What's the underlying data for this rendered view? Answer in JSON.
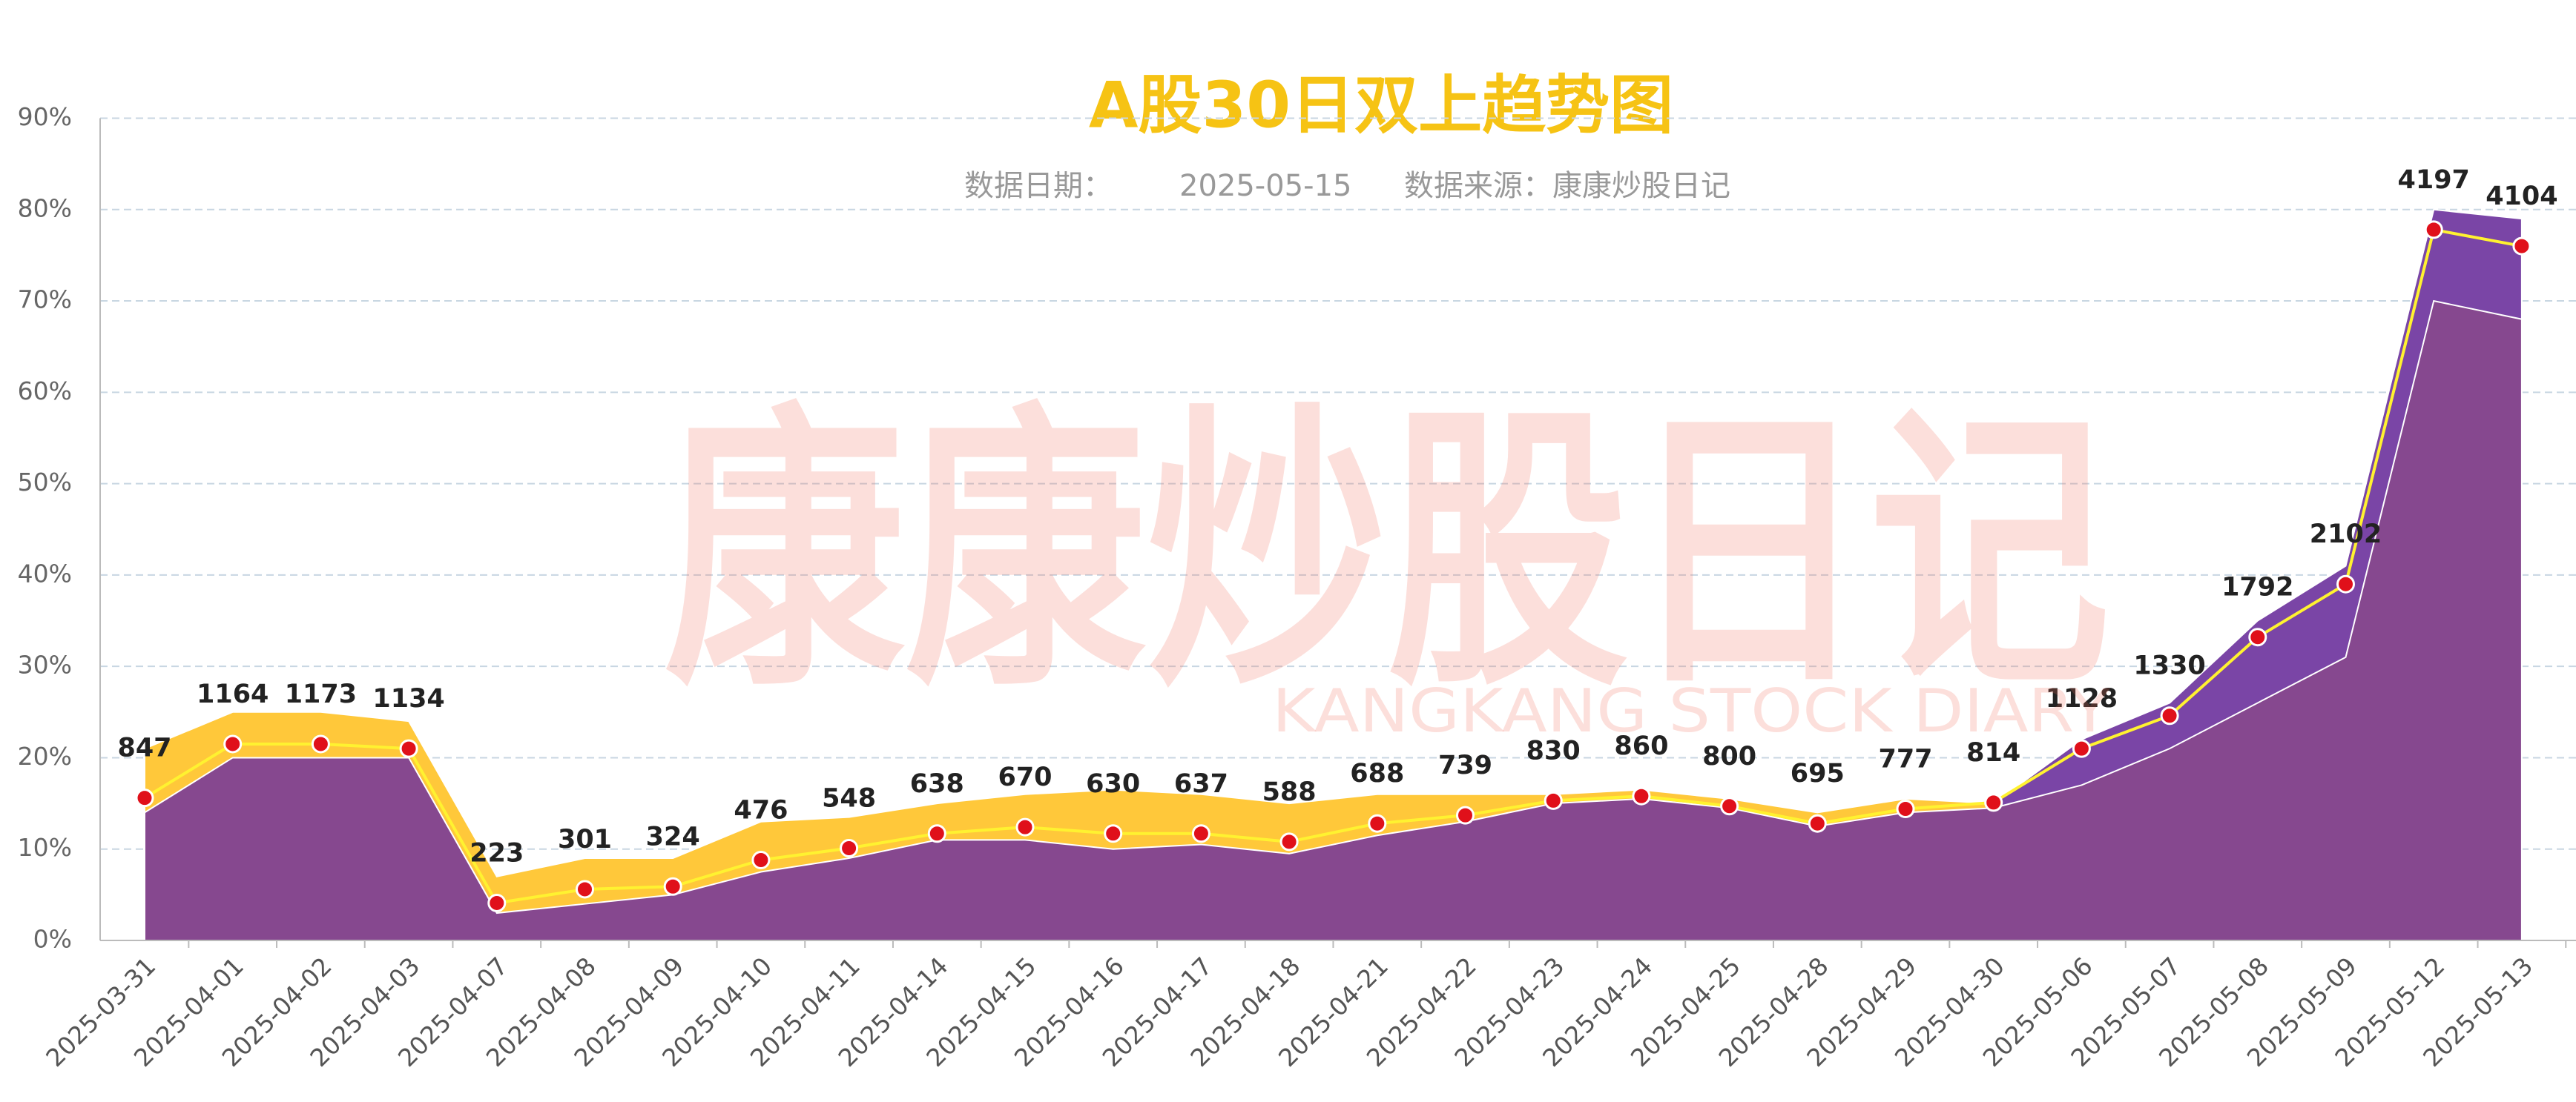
{
  "chart_data": {
    "type": "area-line",
    "title": "A股30日双上趋势图",
    "subtitle_date_label": "数据日期：",
    "subtitle_date": "2025-05-15",
    "subtitle_source": "数据来源：康康炒股日记",
    "watermark": "康康炒股日记",
    "watermark_en": "KANGKANG STOCK DIARY",
    "categories": [
      "2025-03-31",
      "2025-04-01",
      "2025-04-02",
      "2025-04-03",
      "2025-04-07",
      "2025-04-08",
      "2025-04-09",
      "2025-04-10",
      "2025-04-11",
      "2025-04-14",
      "2025-04-15",
      "2025-04-16",
      "2025-04-17",
      "2025-04-18",
      "2025-04-21",
      "2025-04-22",
      "2025-04-23",
      "2025-04-24",
      "2025-04-25",
      "2025-04-28",
      "2025-04-29",
      "2025-04-30",
      "2025-05-06",
      "2025-05-07",
      "2025-05-08",
      "2025-05-09",
      "2025-05-12",
      "2025-05-13"
    ],
    "series": [
      {
        "kind": "area",
        "color": "#ffc83a",
        "values": [
          21,
          25,
          25,
          24,
          7,
          9,
          9,
          13,
          13.5,
          15,
          16,
          16.5,
          16,
          15,
          16,
          16,
          16,
          16.5,
          15.5,
          14,
          15.5,
          15,
          null,
          null,
          null,
          null,
          null,
          null
        ]
      },
      {
        "kind": "area",
        "color": "#7a45a6",
        "values": [
          null,
          null,
          null,
          null,
          null,
          null,
          null,
          null,
          null,
          null,
          null,
          null,
          null,
          null,
          null,
          null,
          null,
          null,
          null,
          null,
          null,
          15,
          22,
          26,
          35,
          41,
          80,
          79
        ]
      },
      {
        "kind": "area",
        "color": "#86488f",
        "values": [
          14,
          20,
          20,
          20,
          3,
          4,
          5,
          7.5,
          9,
          11,
          11,
          10,
          10.5,
          9.5,
          11.5,
          13,
          15,
          15.5,
          14.5,
          12.5,
          14,
          14.5,
          17,
          21,
          26,
          31,
          70,
          68
        ]
      },
      {
        "kind": "line",
        "color": "#fff230",
        "dot_color": "#e0101a",
        "values": [
          15.6,
          21.5,
          21.5,
          21.0,
          4.1,
          5.6,
          5.9,
          8.8,
          10.1,
          11.7,
          12.4,
          11.7,
          11.7,
          10.8,
          12.8,
          13.7,
          15.3,
          15.8,
          14.7,
          12.8,
          14.4,
          15.1,
          21.0,
          24.6,
          33.2,
          39.0,
          77.8,
          76.0
        ]
      }
    ],
    "counts": [
      847,
      1164,
      1173,
      1134,
      223,
      301,
      324,
      476,
      548,
      638,
      670,
      630,
      637,
      588,
      688,
      739,
      830,
      860,
      800,
      695,
      777,
      814,
      1128,
      1330,
      1792,
      2102,
      4197,
      4104
    ],
    "ylim": [
      0,
      90
    ],
    "yticks": [
      {
        "value": 0,
        "label": "0%"
      },
      {
        "value": 10,
        "label": "10%"
      },
      {
        "value": 20,
        "label": "20%"
      },
      {
        "value": 30,
        "label": "30%"
      },
      {
        "value": 40,
        "label": "40%"
      },
      {
        "value": 50,
        "label": "50%"
      },
      {
        "value": 60,
        "label": "60%"
      },
      {
        "value": 70,
        "label": "70%"
      },
      {
        "value": 80,
        "label": "80%"
      },
      {
        "value": 90,
        "label": "90%"
      }
    ],
    "grid": true
  }
}
